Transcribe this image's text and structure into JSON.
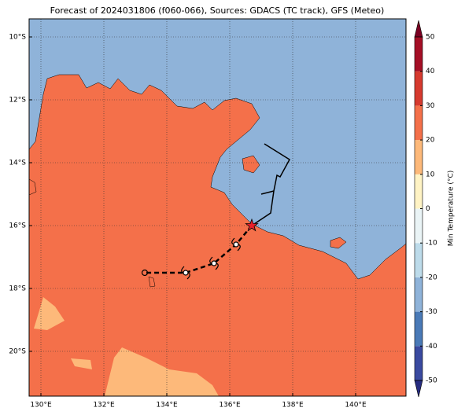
{
  "chart_data": {
    "type": "map",
    "title": "Forecast of 2024031806 (f060-066), Sources: GDACS (TC track), GFS (Meteo)",
    "xlim": [
      129.625,
      141.6
    ],
    "ylim": [
      -21.425,
      -9.425
    ],
    "xticks": [
      {
        "value": 130,
        "label": "130°E"
      },
      {
        "value": 132,
        "label": "132°E"
      },
      {
        "value": 134,
        "label": "134°E"
      },
      {
        "value": 136,
        "label": "136°E"
      },
      {
        "value": 138,
        "label": "138°E"
      },
      {
        "value": 140,
        "label": "140°E"
      }
    ],
    "yticks": [
      {
        "value": -10,
        "label": "10°S"
      },
      {
        "value": -12,
        "label": "12°S"
      },
      {
        "value": -14,
        "label": "14°S"
      },
      {
        "value": -16,
        "label": "16°S"
      },
      {
        "value": -18,
        "label": "18°S"
      },
      {
        "value": -20,
        "label": "20°S"
      }
    ],
    "grid": true,
    "past_track": {
      "x": [
        137.1,
        137.9,
        137.6,
        137.5,
        137.4,
        137.0,
        137.4,
        137.3,
        136.7
      ],
      "y": [
        -13.4,
        -13.9,
        -14.45,
        -14.4,
        -14.9,
        -15.0,
        -14.9,
        -15.6,
        -16.0
      ]
    },
    "forecast_track": {
      "x": [
        136.7,
        136.2,
        135.5,
        134.6,
        133.3
      ],
      "y": [
        -16.0,
        -16.6,
        -17.2,
        -17.5,
        -17.5
      ]
    },
    "colorbar": {
      "label": "Min Temperature (°C)",
      "clim": [
        -50,
        50
      ],
      "ticks": [
        -50,
        -40,
        -30,
        -20,
        -10,
        0,
        10,
        20,
        30,
        40,
        50
      ],
      "colors": [
        "#3a4aa0",
        "#4a7ab7",
        "#8fb3d9",
        "#bddbea",
        "#eaf4f6",
        "#fff3c4",
        "#fdb97a",
        "#f4704a",
        "#d63a2f",
        "#a50f26"
      ],
      "under_color": "#262c80",
      "over_color": "#7a0022"
    }
  }
}
